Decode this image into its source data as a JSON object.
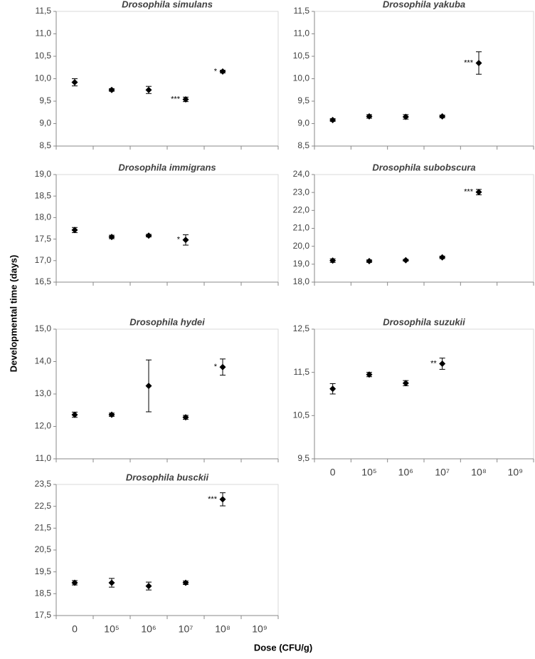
{
  "figure": {
    "xlabel": "Dose (CFU/g)",
    "ylabel": "Developmental time (days)",
    "categories": [
      "0",
      "10⁵",
      "10⁶",
      "10⁷",
      "10⁸",
      "10⁹"
    ]
  },
  "chart_data": [
    {
      "type": "scatter",
      "title": "Drosophila simulans",
      "color": "#000000",
      "values": [
        9.92,
        9.75,
        9.75,
        9.54,
        10.16,
        null
      ],
      "errors": [
        0.08,
        0.03,
        0.08,
        0.05,
        0.03,
        null
      ],
      "annotations": [
        null,
        null,
        null,
        "***",
        "*",
        null
      ],
      "ylim": [
        8.5,
        11.5
      ],
      "yticks": [
        {
          "value": 8.5,
          "label": "8,5"
        },
        {
          "value": 9,
          "label": "9,0"
        },
        {
          "value": 9.5,
          "label": "9,5"
        },
        {
          "value": 10,
          "label": "10,0"
        },
        {
          "value": 10.5,
          "label": "10,5"
        },
        {
          "value": 11,
          "label": "11,0"
        },
        {
          "value": 11.5,
          "label": "11,5"
        }
      ]
    },
    {
      "type": "scatter",
      "title": "Drosophila yakuba",
      "color": "#000000",
      "values": [
        9.08,
        9.16,
        9.15,
        9.16,
        10.35,
        null
      ],
      "errors": [
        0.03,
        0.04,
        0.05,
        0.03,
        0.25,
        null
      ],
      "annotations": [
        null,
        null,
        null,
        null,
        "***",
        null
      ],
      "ylim": [
        8.5,
        11.5
      ],
      "yticks": [
        {
          "value": 8.5,
          "label": "8,5"
        },
        {
          "value": 9,
          "label": "9,0"
        },
        {
          "value": 9.5,
          "label": "9,5"
        },
        {
          "value": 10,
          "label": "10,0"
        },
        {
          "value": 10.5,
          "label": "10,5"
        },
        {
          "value": 11,
          "label": "11,0"
        },
        {
          "value": 11.5,
          "label": "11,5"
        }
      ]
    },
    {
      "type": "scatter",
      "title": "Drosophila immigrans",
      "color": "#000000",
      "values": [
        17.71,
        17.55,
        17.58,
        17.48,
        null,
        null
      ],
      "errors": [
        0.06,
        0.04,
        0.03,
        0.12,
        null,
        null
      ],
      "annotations": [
        null,
        null,
        null,
        "*",
        null,
        null
      ],
      "ylim": [
        16.5,
        19.0
      ],
      "yticks": [
        {
          "value": 16.5,
          "label": "16,5"
        },
        {
          "value": 17,
          "label": "17,0"
        },
        {
          "value": 17.5,
          "label": "17,5"
        },
        {
          "value": 18,
          "label": "18,0"
        },
        {
          "value": 18.5,
          "label": "18,5"
        },
        {
          "value": 19,
          "label": "19,0"
        }
      ]
    },
    {
      "type": "scatter",
      "title": "Drosophila subobscura",
      "color": "#000000",
      "values": [
        19.2,
        19.17,
        19.22,
        19.38,
        23.02,
        null
      ],
      "errors": [
        0.1,
        0.07,
        0.05,
        0.07,
        0.15,
        null
      ],
      "annotations": [
        null,
        null,
        null,
        null,
        "***",
        null
      ],
      "ylim": [
        18.0,
        24.0
      ],
      "yticks": [
        {
          "value": 18,
          "label": "18,0"
        },
        {
          "value": 19,
          "label": "19,0"
        },
        {
          "value": 20,
          "label": "20,0"
        },
        {
          "value": 21,
          "label": "21,0"
        },
        {
          "value": 22,
          "label": "22,0"
        },
        {
          "value": 23,
          "label": "23,0"
        },
        {
          "value": 24,
          "label": "24,0"
        }
      ]
    },
    {
      "type": "scatter",
      "title": "Drosophila hydei",
      "color": "#000000",
      "values": [
        12.36,
        12.36,
        13.25,
        12.28,
        13.83,
        null
      ],
      "errors": [
        0.08,
        0.05,
        0.8,
        0.06,
        0.25,
        null
      ],
      "annotations": [
        null,
        null,
        null,
        null,
        "*",
        null
      ],
      "ylim": [
        11.0,
        15.0
      ],
      "yticks": [
        {
          "value": 11,
          "label": "11,0"
        },
        {
          "value": 12,
          "label": "12,0"
        },
        {
          "value": 13,
          "label": "13,0"
        },
        {
          "value": 14,
          "label": "14,0"
        },
        {
          "value": 15,
          "label": "15,0"
        }
      ]
    },
    {
      "type": "scatter",
      "title": "Drosophila suzukii",
      "color": "#000000",
      "values": [
        11.12,
        11.45,
        11.25,
        11.7,
        null,
        null
      ],
      "errors": [
        0.12,
        0.05,
        0.06,
        0.13,
        null,
        null
      ],
      "annotations": [
        null,
        null,
        null,
        "**",
        null,
        null
      ],
      "ylim": [
        9.5,
        12.5
      ],
      "xticklabels": true,
      "yticks": [
        {
          "value": 9.5,
          "label": "9,5"
        },
        {
          "value": 10.5,
          "label": "10,5"
        },
        {
          "value": 11.5,
          "label": "11,5"
        },
        {
          "value": 12.5,
          "label": "12,5"
        }
      ]
    },
    {
      "type": "scatter",
      "title": "Drosophila busckii",
      "color": "#000000",
      "values": [
        19.0,
        19.0,
        18.85,
        19.0,
        22.82,
        null
      ],
      "errors": [
        0.1,
        0.2,
        0.18,
        0.08,
        0.3,
        null
      ],
      "annotations": [
        null,
        null,
        null,
        null,
        "***",
        null
      ],
      "ylim": [
        17.5,
        23.5
      ],
      "xticklabels": true,
      "yticks": [
        {
          "value": 17.5,
          "label": "17,5"
        },
        {
          "value": 18.5,
          "label": "18,5"
        },
        {
          "value": 19.5,
          "label": "19,5"
        },
        {
          "value": 20.5,
          "label": "20,5"
        },
        {
          "value": 21.5,
          "label": "21,5"
        },
        {
          "value": 22.5,
          "label": "22,5"
        },
        {
          "value": 23.5,
          "label": "23,5"
        }
      ]
    }
  ]
}
